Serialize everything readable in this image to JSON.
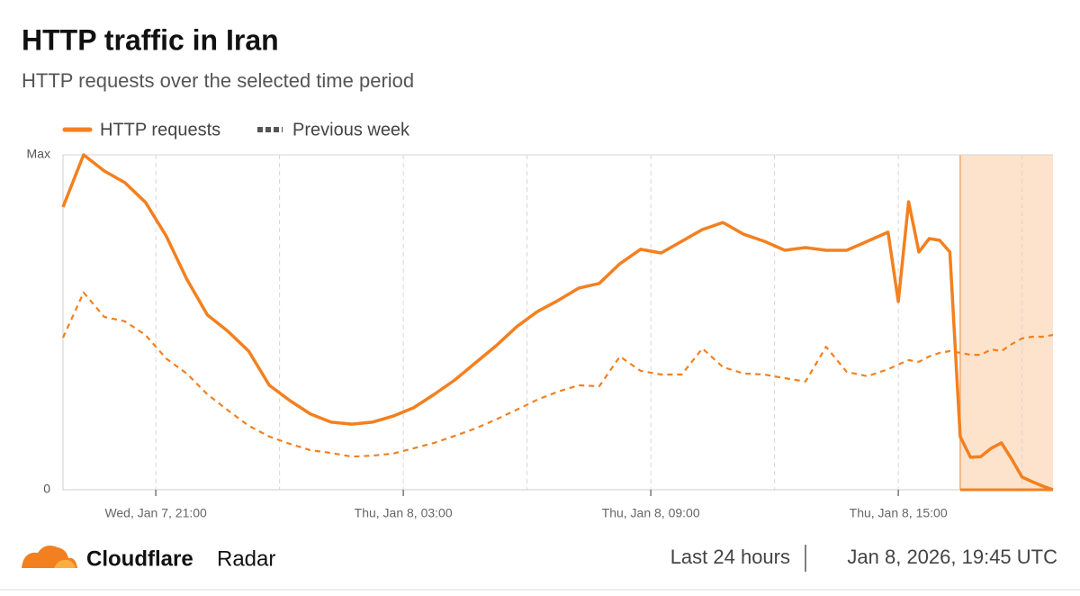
{
  "chart_data": {
    "type": "line",
    "title": "HTTP traffic in Iran",
    "subtitle": "HTTP requests over the selected time period",
    "x": [
      "2026-01-07 18:45",
      "2026-01-07 19:15",
      "2026-01-07 19:45",
      "2026-01-07 20:15",
      "2026-01-07 20:45",
      "2026-01-07 21:15",
      "2026-01-07 21:45",
      "2026-01-07 22:15",
      "2026-01-07 22:45",
      "2026-01-07 23:15",
      "2026-01-07 23:45",
      "2026-01-08 00:15",
      "2026-01-08 00:45",
      "2026-01-08 01:15",
      "2026-01-08 01:45",
      "2026-01-08 02:15",
      "2026-01-08 02:45",
      "2026-01-08 03:15",
      "2026-01-08 03:45",
      "2026-01-08 04:15",
      "2026-01-08 04:45",
      "2026-01-08 05:15",
      "2026-01-08 05:45",
      "2026-01-08 06:15",
      "2026-01-08 06:45",
      "2026-01-08 07:15",
      "2026-01-08 07:45",
      "2026-01-08 08:15",
      "2026-01-08 08:45",
      "2026-01-08 09:15",
      "2026-01-08 09:45",
      "2026-01-08 10:15",
      "2026-01-08 10:45",
      "2026-01-08 11:15",
      "2026-01-08 11:45",
      "2026-01-08 12:15",
      "2026-01-08 12:45",
      "2026-01-08 13:15",
      "2026-01-08 13:45",
      "2026-01-08 14:15",
      "2026-01-08 14:45",
      "2026-01-08 15:00",
      "2026-01-08 15:15",
      "2026-01-08 15:30",
      "2026-01-08 15:45",
      "2026-01-08 16:00",
      "2026-01-08 16:15",
      "2026-01-08 16:30",
      "2026-01-08 16:45",
      "2026-01-08 17:00",
      "2026-01-08 17:15",
      "2026-01-08 17:30",
      "2026-01-08 17:45",
      "2026-01-08 18:00",
      "2026-01-08 18:15",
      "2026-01-08 18:30",
      "2026-01-08 18:45"
    ],
    "series": [
      {
        "name": "HTTP requests",
        "color": "#f38020",
        "style": "solid",
        "values": [
          84.4,
          100,
          95.2,
          91.7,
          85.8,
          75.8,
          62.9,
          52.2,
          47.3,
          41.4,
          31.2,
          26.6,
          22.6,
          20.2,
          19.6,
          20.2,
          22.0,
          24.5,
          28.5,
          32.8,
          37.9,
          43.0,
          48.7,
          53.2,
          56.5,
          60.2,
          61.6,
          67.5,
          71.8,
          70.7,
          74.2,
          77.7,
          79.8,
          76.3,
          74.2,
          71.5,
          72.3,
          71.5,
          71.5,
          74.2,
          76.9,
          56.2,
          86.0,
          71.0,
          75.0,
          74.5,
          71.0,
          15.9,
          9.7,
          9.9,
          12.4,
          14.0,
          9.1,
          3.8,
          2.4,
          1.1,
          0
        ]
      },
      {
        "name": "Previous week",
        "color": "#f38020",
        "style": "dashed",
        "values": [
          45.4,
          58.9,
          51.6,
          50.3,
          46.2,
          39.2,
          34.7,
          28.5,
          23.7,
          19.1,
          15.9,
          13.7,
          11.8,
          11.0,
          9.9,
          10.2,
          10.8,
          12.4,
          14.0,
          16.1,
          18.3,
          21.0,
          23.9,
          26.9,
          29.3,
          31.2,
          30.9,
          39.8,
          35.5,
          34.4,
          34.4,
          42.2,
          36.6,
          34.7,
          34.4,
          33.3,
          32.3,
          42.7,
          35.2,
          33.9,
          36.0,
          37.4,
          38.7,
          38.2,
          39.8,
          40.9,
          41.4,
          40.9,
          40.3,
          40.3,
          41.9,
          41.4,
          43.5,
          45.2,
          45.7,
          45.7,
          46.2
        ]
      }
    ],
    "xlim": [
      "2026-01-07 18:45",
      "2026-01-08 18:45"
    ],
    "xticks": [
      {
        "value": "2026-01-07 21:00",
        "label": "Wed, Jan 7, 21:00"
      },
      {
        "value": "2026-01-08 00:00",
        "label": null
      },
      {
        "value": "2026-01-08 03:00",
        "label": "Thu, Jan 8, 03:00"
      },
      {
        "value": "2026-01-08 06:00",
        "label": null
      },
      {
        "value": "2026-01-08 09:00",
        "label": "Thu, Jan 8, 09:00"
      },
      {
        "value": "2026-01-08 12:00",
        "label": null
      },
      {
        "value": "2026-01-08 15:00",
        "label": "Thu, Jan 8, 15:00"
      },
      {
        "value": "2026-01-08 18:00",
        "label": null
      }
    ],
    "ylim": [
      0,
      100
    ],
    "yticks": [
      0,
      {
        "value": 100,
        "label": "Max"
      }
    ],
    "grid": true,
    "shaded_region": [
      "2026-01-08 16:30",
      "2026-01-08 18:45"
    ]
  },
  "footer": {
    "brand": "Cloudflare",
    "product": "Radar",
    "period": "Last 24 hours",
    "timestamp": "Jan 8, 2026, 19:45 UTC"
  }
}
